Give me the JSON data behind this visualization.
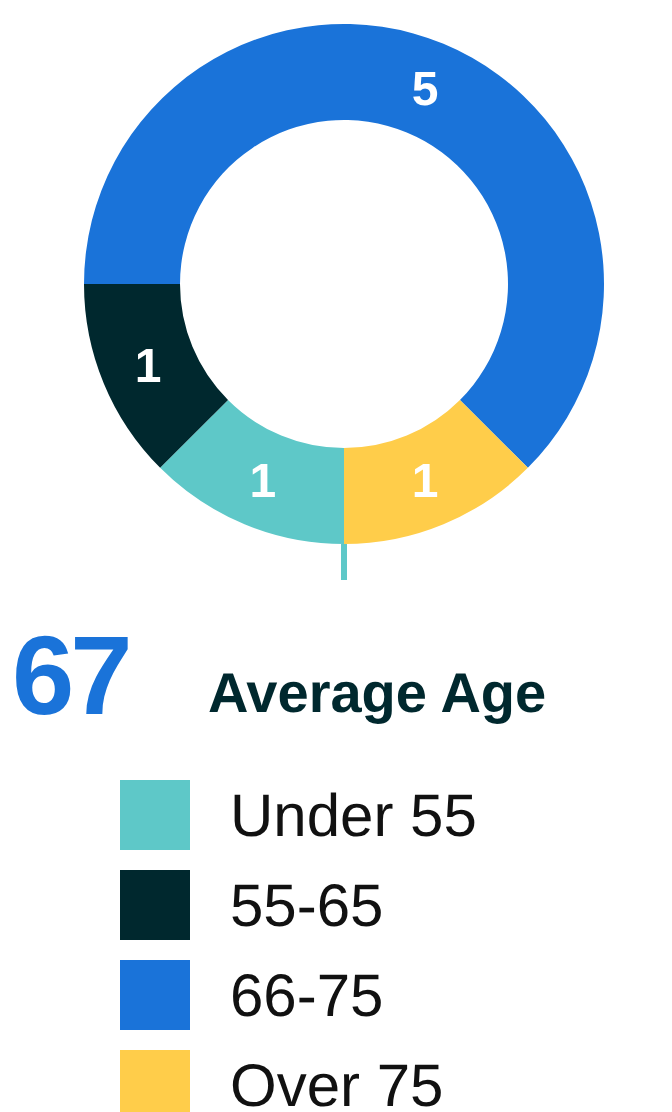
{
  "chart_data": {
    "type": "donut",
    "categories": [
      "Under 55",
      "55-65",
      "66-75",
      "Over 75"
    ],
    "values": [
      1,
      1,
      5,
      1
    ],
    "colors": [
      "#5ec8c8",
      "#00282e",
      "#1a73d9",
      "#ffcd4a"
    ],
    "data_labels": true,
    "legend": "bottom",
    "annotations": [
      "67",
      "Average Age"
    ]
  }
}
